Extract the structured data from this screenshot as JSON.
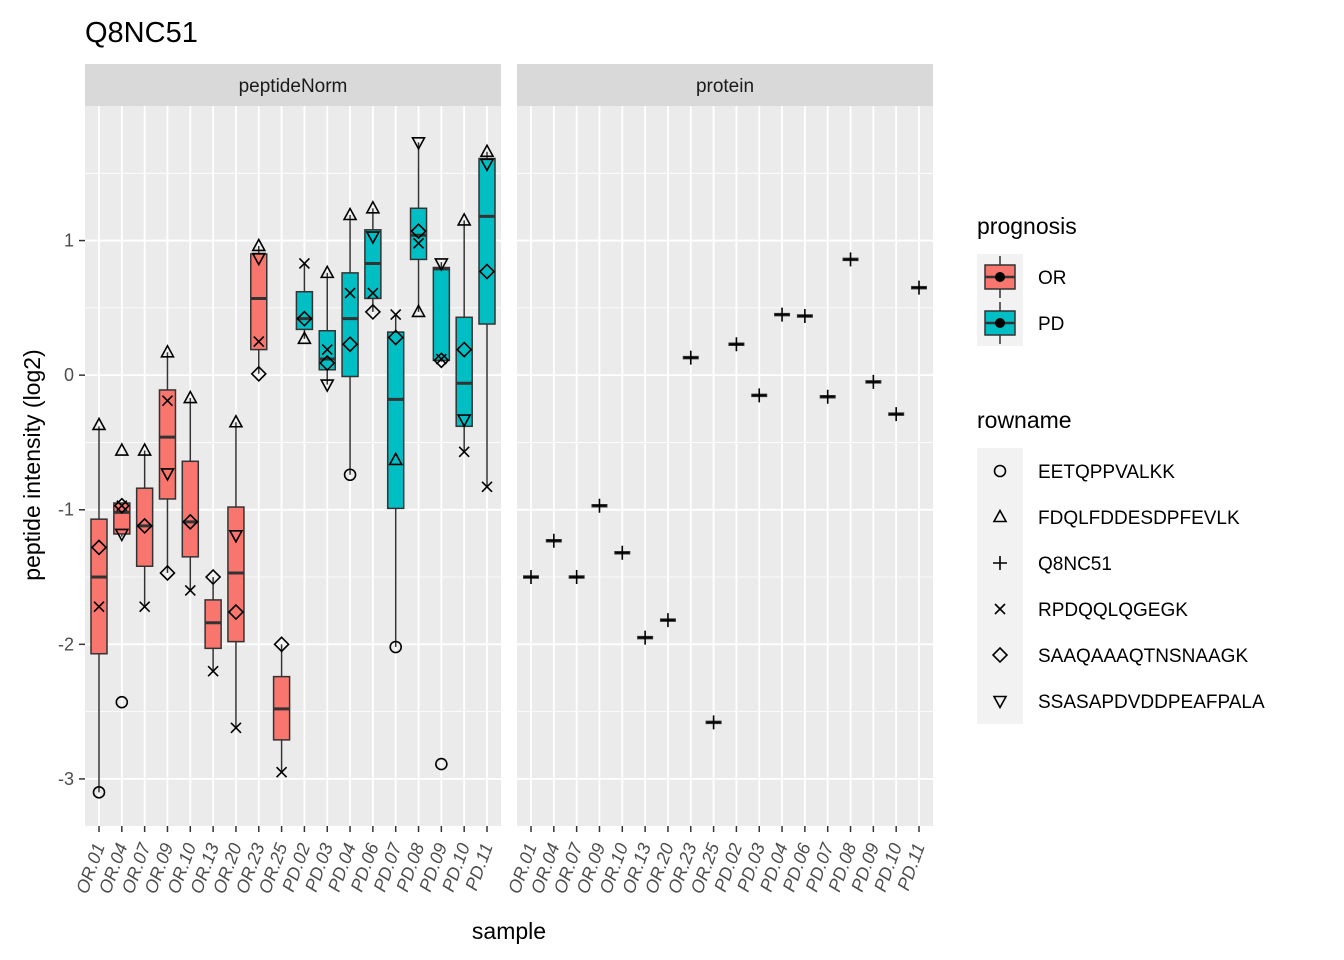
{
  "chart_data": {
    "type": "boxplot",
    "title": "Q8NC51",
    "xlabel": "sample",
    "ylabel": "peptide intensity (log2)",
    "ylim": [
      -3.35,
      2.0
    ],
    "yticks": [
      -3,
      -2,
      -1,
      0,
      1
    ],
    "grid": true,
    "facets": [
      "peptideNorm",
      "protein"
    ],
    "samples": [
      "OR.01",
      "OR.04",
      "OR.07",
      "OR.09",
      "OR.10",
      "OR.13",
      "OR.20",
      "OR.23",
      "OR.25",
      "PD.02",
      "PD.03",
      "PD.04",
      "PD.06",
      "PD.07",
      "PD.08",
      "PD.09",
      "PD.10",
      "PD.11"
    ],
    "prognosis_colors": {
      "OR": "#F8766D",
      "PD": "#00BFC4"
    },
    "legend_prognosis": {
      "title": "prognosis",
      "items": [
        "OR",
        "PD"
      ]
    },
    "legend_rowname": {
      "title": "rowname",
      "items": [
        {
          "name": "EETQPPVALKK",
          "shape": "circle"
        },
        {
          "name": "FDQLFDDESDPFEVLK",
          "shape": "triangle"
        },
        {
          "name": "Q8NC51",
          "shape": "plus"
        },
        {
          "name": "RPDQQLQGEGK",
          "shape": "cross"
        },
        {
          "name": "SAAQAAAQTNSNAAGK",
          "shape": "diamond"
        },
        {
          "name": "SSASAPDVDDPEAFPALA",
          "shape": "triangle-down"
        }
      ]
    },
    "peptideNorm": [
      {
        "sample": "OR.01",
        "prognosis": "OR",
        "box": [
          -3.1,
          -2.07,
          -1.5,
          -1.07,
          -0.38
        ],
        "points": [
          [
            "circle",
            -3.1
          ],
          [
            "triangle",
            -0.37
          ],
          [
            "diamond",
            -1.28
          ],
          [
            "cross",
            -1.72
          ]
        ]
      },
      {
        "sample": "OR.04",
        "prognosis": "OR",
        "box": [
          -1.2,
          -1.18,
          -1.02,
          -0.95,
          -0.95
        ],
        "points": [
          [
            "circle",
            -2.43
          ],
          [
            "triangle",
            -0.56
          ],
          [
            "diamond",
            -0.97
          ],
          [
            "cross",
            -0.97
          ],
          [
            "triangle-down",
            -1.18
          ]
        ]
      },
      {
        "sample": "OR.07",
        "prognosis": "OR",
        "box": [
          -1.72,
          -1.42,
          -1.12,
          -0.84,
          -0.56
        ],
        "points": [
          [
            "triangle",
            -0.56
          ],
          [
            "diamond",
            -1.12
          ],
          [
            "cross",
            -1.72
          ]
        ]
      },
      {
        "sample": "OR.09",
        "prognosis": "OR",
        "box": [
          -1.47,
          -0.92,
          -0.46,
          -0.11,
          0.17
        ],
        "points": [
          [
            "triangle",
            0.17
          ],
          [
            "diamond",
            -1.47
          ],
          [
            "cross",
            -0.19
          ],
          [
            "triangle-down",
            -0.73
          ]
        ]
      },
      {
        "sample": "OR.10",
        "prognosis": "OR",
        "box": [
          -1.6,
          -1.35,
          -1.09,
          -0.64,
          -0.17
        ],
        "points": [
          [
            "triangle",
            -0.17
          ],
          [
            "diamond",
            -1.09
          ],
          [
            "cross",
            -1.6
          ]
        ]
      },
      {
        "sample": "OR.13",
        "prognosis": "OR",
        "box": [
          -2.2,
          -2.03,
          -1.84,
          -1.67,
          -1.5
        ],
        "points": [
          [
            "diamond",
            -1.5
          ],
          [
            "cross",
            -2.2
          ]
        ]
      },
      {
        "sample": "OR.20",
        "prognosis": "OR",
        "box": [
          -2.62,
          -1.98,
          -1.47,
          -0.98,
          -0.35
        ],
        "points": [
          [
            "triangle",
            -0.35
          ],
          [
            "diamond",
            -1.76
          ],
          [
            "cross",
            -2.62
          ],
          [
            "triangle-down",
            -1.19
          ]
        ]
      },
      {
        "sample": "OR.23",
        "prognosis": "OR",
        "box": [
          0.01,
          0.19,
          0.57,
          0.9,
          0.96
        ],
        "points": [
          [
            "triangle",
            0.96
          ],
          [
            "diamond",
            0.01
          ],
          [
            "cross",
            0.25
          ],
          [
            "triangle-down",
            0.87
          ]
        ]
      },
      {
        "sample": "OR.25",
        "prognosis": "OR",
        "box": [
          -2.95,
          -2.71,
          -2.48,
          -2.24,
          -2.0
        ],
        "points": [
          [
            "diamond",
            -2.0
          ],
          [
            "cross",
            -2.95
          ]
        ]
      },
      {
        "sample": "PD.02",
        "prognosis": "PD",
        "box": [
          0.27,
          0.34,
          0.42,
          0.62,
          0.83
        ],
        "points": [
          [
            "triangle",
            0.27
          ],
          [
            "diamond",
            0.42
          ],
          [
            "cross",
            0.83
          ]
        ]
      },
      {
        "sample": "PD.03",
        "prognosis": "PD",
        "box": [
          -0.07,
          0.04,
          0.12,
          0.33,
          0.76
        ],
        "points": [
          [
            "triangle",
            0.76
          ],
          [
            "diamond",
            0.09
          ],
          [
            "cross",
            0.19
          ],
          [
            "triangle-down",
            -0.07
          ]
        ]
      },
      {
        "sample": "PD.04",
        "prognosis": "PD",
        "box": [
          -0.74,
          -0.01,
          0.42,
          0.76,
          1.19
        ],
        "points": [
          [
            "circle",
            -0.74
          ],
          [
            "triangle",
            1.19
          ],
          [
            "diamond",
            0.23
          ],
          [
            "cross",
            0.61
          ]
        ]
      },
      {
        "sample": "PD.06",
        "prognosis": "PD",
        "box": [
          0.47,
          0.57,
          0.83,
          1.08,
          1.24
        ],
        "points": [
          [
            "triangle",
            1.24
          ],
          [
            "diamond",
            0.47
          ],
          [
            "cross",
            0.61
          ],
          [
            "triangle-down",
            1.03
          ]
        ]
      },
      {
        "sample": "PD.07",
        "prognosis": "PD",
        "box": [
          -2.02,
          -0.99,
          -0.18,
          0.32,
          0.45
        ],
        "points": [
          [
            "circle",
            -2.02
          ],
          [
            "triangle",
            -0.63
          ],
          [
            "diamond",
            0.28
          ],
          [
            "cross",
            0.45
          ]
        ]
      },
      {
        "sample": "PD.08",
        "prognosis": "PD",
        "box": [
          0.47,
          0.86,
          1.04,
          1.24,
          1.73
        ],
        "points": [
          [
            "triangle",
            0.47
          ],
          [
            "diamond",
            1.07
          ],
          [
            "cross",
            0.98
          ],
          [
            "triangle-down",
            1.73
          ]
        ]
      },
      {
        "sample": "PD.09",
        "prognosis": "PD",
        "box": [
          0.1,
          0.11,
          0.79,
          0.8,
          0.84
        ],
        "points": [
          [
            "circle",
            -2.89
          ],
          [
            "diamond",
            0.11
          ],
          [
            "cross",
            0.12
          ],
          [
            "triangle-down",
            0.83
          ]
        ]
      },
      {
        "sample": "PD.10",
        "prognosis": "PD",
        "box": [
          -0.57,
          -0.38,
          -0.06,
          0.43,
          1.15
        ],
        "points": [
          [
            "triangle",
            1.15
          ],
          [
            "diamond",
            0.19
          ],
          [
            "cross",
            -0.57
          ],
          [
            "triangle-down",
            -0.33
          ]
        ]
      },
      {
        "sample": "PD.11",
        "prognosis": "PD",
        "box": [
          -0.83,
          0.38,
          1.18,
          1.61,
          1.66
        ],
        "points": [
          [
            "triangle",
            1.66
          ],
          [
            "diamond",
            0.77
          ],
          [
            "cross",
            -0.83
          ],
          [
            "triangle-down",
            1.57
          ]
        ]
      }
    ],
    "protein": [
      {
        "sample": "OR.01",
        "value": -1.5
      },
      {
        "sample": "OR.04",
        "value": -1.23
      },
      {
        "sample": "OR.07",
        "value": -1.5
      },
      {
        "sample": "OR.09",
        "value": -0.97
      },
      {
        "sample": "OR.10",
        "value": -1.32
      },
      {
        "sample": "OR.13",
        "value": -1.95
      },
      {
        "sample": "OR.20",
        "value": -1.82
      },
      {
        "sample": "OR.23",
        "value": 0.13
      },
      {
        "sample": "OR.25",
        "value": -2.58
      },
      {
        "sample": "PD.02",
        "value": 0.23
      },
      {
        "sample": "PD.03",
        "value": -0.15
      },
      {
        "sample": "PD.04",
        "value": 0.45
      },
      {
        "sample": "PD.06",
        "value": 0.44
      },
      {
        "sample": "PD.07",
        "value": -0.16
      },
      {
        "sample": "PD.08",
        "value": 0.86
      },
      {
        "sample": "PD.09",
        "value": -0.05
      },
      {
        "sample": "PD.10",
        "value": -0.29
      },
      {
        "sample": "PD.11",
        "value": 0.65
      }
    ]
  }
}
